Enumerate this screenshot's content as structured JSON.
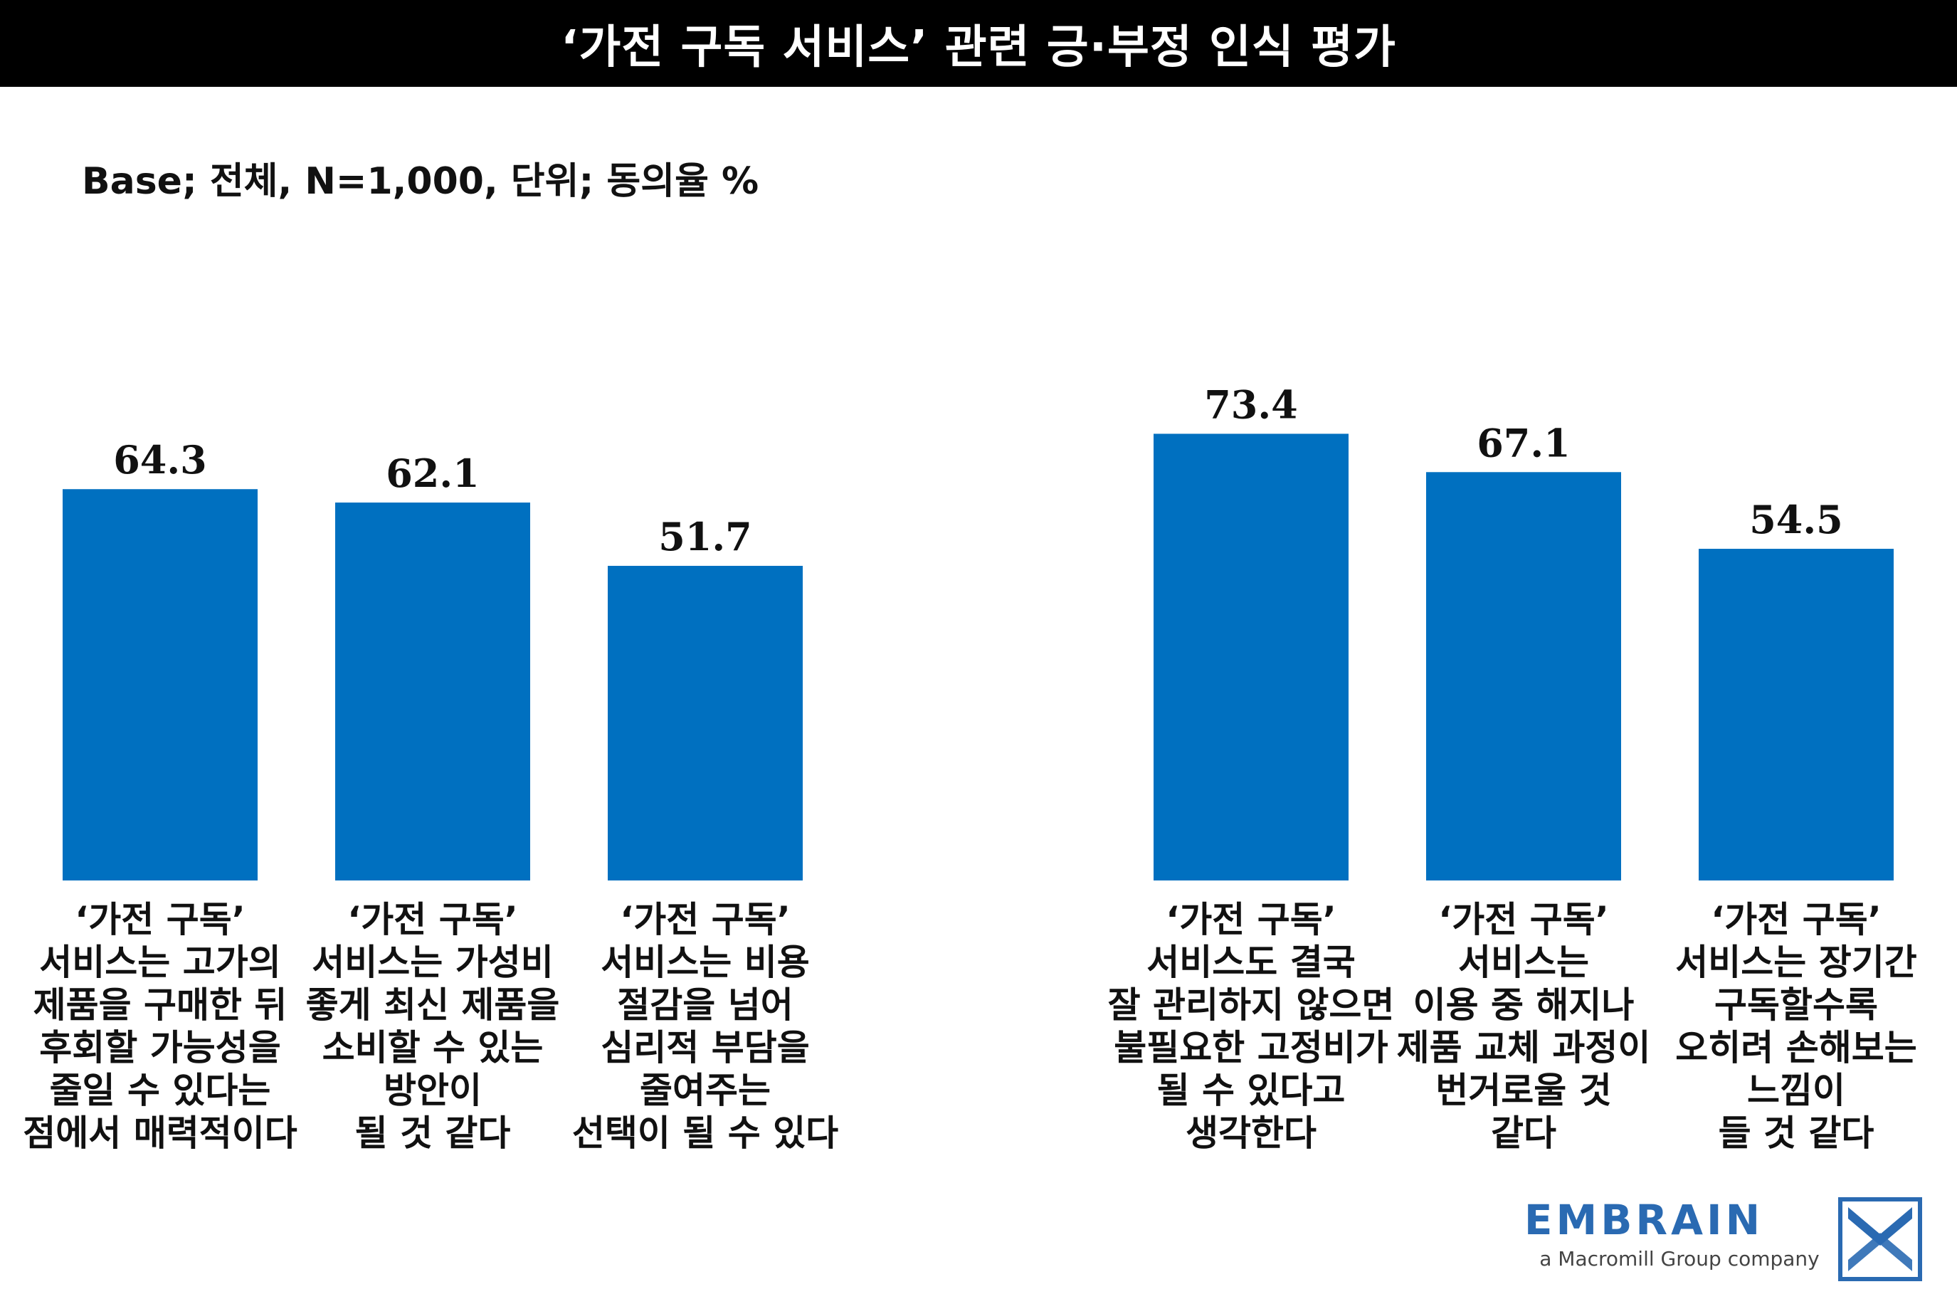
{
  "title": "‘가전 구독 서비스’ 관련 긍·부정 인식 평가",
  "base_note": "Base; 전체, N=1,000, 단위; 동의율 %",
  "colors": {
    "bar": "#0070c0",
    "title_bg": "#000000",
    "brand": "#2a6ab2"
  },
  "chart_data": {
    "type": "bar",
    "title": "‘가전 구독 서비스’ 관련 긍·부정 인식 평가",
    "ylabel": "동의율 %",
    "ylim": [
      0,
      100
    ],
    "grid": false,
    "categories": [
      [
        "‘가전 구독’",
        "서비스는 고가의",
        "제품을 구매한 뒤",
        "후회할 가능성을",
        "줄일 수 있다는",
        "점에서 매력적이다"
      ],
      [
        "‘가전 구독’",
        "서비스는 가성비",
        "좋게 최신 제품을",
        "소비할 수 있는",
        "방안이",
        "될 것 같다"
      ],
      [
        "‘가전 구독’",
        "서비스는 비용",
        "절감을 넘어",
        "심리적 부담을",
        "줄여주는",
        "선택이 될 수 있다"
      ],
      [
        "‘가전 구독’",
        "서비스도 결국",
        "잘 관리하지 않으면",
        "불필요한 고정비가",
        "될 수 있다고",
        "생각한다"
      ],
      [
        "‘가전 구독’",
        "서비스는",
        "이용 중 해지나",
        "제품 교체 과정이",
        "번거로울 것",
        "같다"
      ],
      [
        "‘가전 구독’",
        "서비스는 장기간",
        "구독할수록",
        "오히려 손해보는",
        "느낌이",
        "들 것 같다"
      ]
    ],
    "values": [
      64.3,
      62.1,
      51.7,
      73.4,
      67.1,
      54.5
    ],
    "value_labels": [
      "64.3",
      "62.1",
      "51.7",
      "73.4",
      "67.1",
      "54.5"
    ]
  },
  "logo": {
    "name": "EMBRAIN",
    "tagline": "a Macromill Group company",
    "mark_icon": "embrain-mark-icon"
  }
}
